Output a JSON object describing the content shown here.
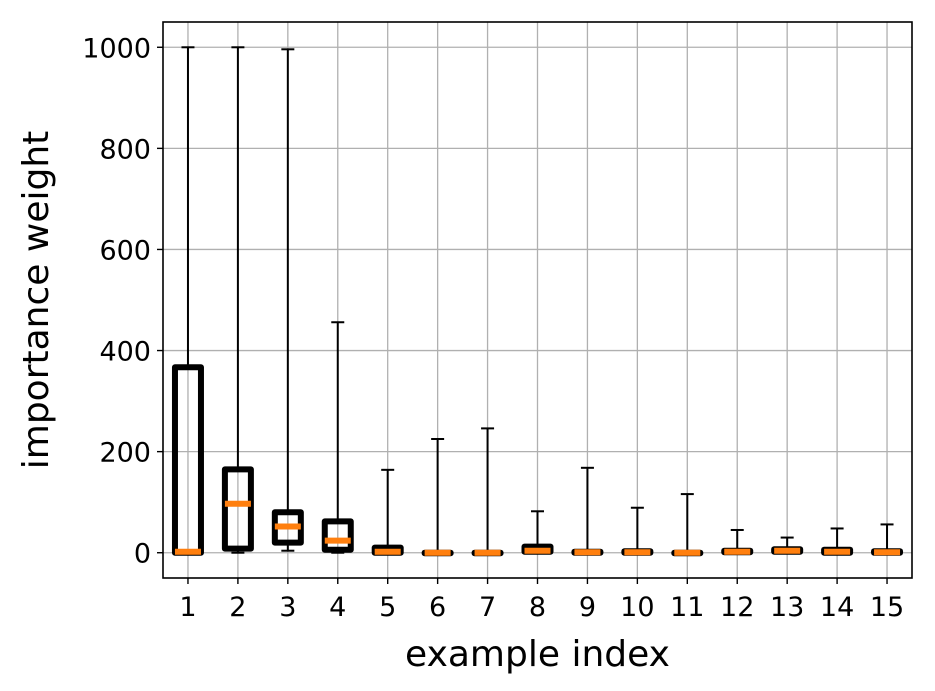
{
  "chart_data": {
    "type": "boxplot",
    "xlabel": "example index",
    "ylabel": "importance weight",
    "categories": [
      "1",
      "2",
      "3",
      "4",
      "5",
      "6",
      "7",
      "8",
      "9",
      "10",
      "11",
      "12",
      "13",
      "14",
      "15"
    ],
    "ylim": [
      -50,
      1050
    ],
    "yticks": [
      0,
      200,
      400,
      600,
      800,
      1000
    ],
    "grid": true,
    "box_color": "#000000",
    "median_color": "#ff7f0e",
    "grid_color": "#b0b0b0",
    "boxes": [
      {
        "label": "1",
        "whislo": 0,
        "q1": 0,
        "med": 2,
        "q3": 367,
        "whishi": 1000
      },
      {
        "label": "2",
        "whislo": 0,
        "q1": 8,
        "med": 97,
        "q3": 165,
        "whishi": 1000
      },
      {
        "label": "3",
        "whislo": 4,
        "q1": 20,
        "med": 52,
        "q3": 80,
        "whishi": 996
      },
      {
        "label": "4",
        "whislo": 0,
        "q1": 6,
        "med": 24,
        "q3": 62,
        "whishi": 456
      },
      {
        "label": "5",
        "whislo": 0,
        "q1": 0,
        "med": 2,
        "q3": 10,
        "whishi": 164
      },
      {
        "label": "6",
        "whislo": 0,
        "q1": 0,
        "med": 0,
        "q3": 0,
        "whishi": 225
      },
      {
        "label": "7",
        "whislo": 0,
        "q1": 0,
        "med": 0,
        "q3": 0,
        "whishi": 246
      },
      {
        "label": "8",
        "whislo": 0,
        "q1": 2,
        "med": 4,
        "q3": 12,
        "whishi": 82
      },
      {
        "label": "9",
        "whislo": 0,
        "q1": 0,
        "med": 1,
        "q3": 2,
        "whishi": 168
      },
      {
        "label": "10",
        "whislo": 0,
        "q1": 0,
        "med": 1,
        "q3": 3,
        "whishi": 89
      },
      {
        "label": "11",
        "whislo": 0,
        "q1": 0,
        "med": 0,
        "q3": 0,
        "whishi": 116
      },
      {
        "label": "12",
        "whislo": 0,
        "q1": 1,
        "med": 2,
        "q3": 4,
        "whishi": 45
      },
      {
        "label": "13",
        "whislo": 0,
        "q1": 2,
        "med": 4,
        "q3": 7,
        "whishi": 30
      },
      {
        "label": "14",
        "whislo": 0,
        "q1": 0,
        "med": 2,
        "q3": 6,
        "whishi": 48
      },
      {
        "label": "15",
        "whislo": 0,
        "q1": 0,
        "med": 1,
        "q3": 3,
        "whishi": 56
      }
    ]
  }
}
